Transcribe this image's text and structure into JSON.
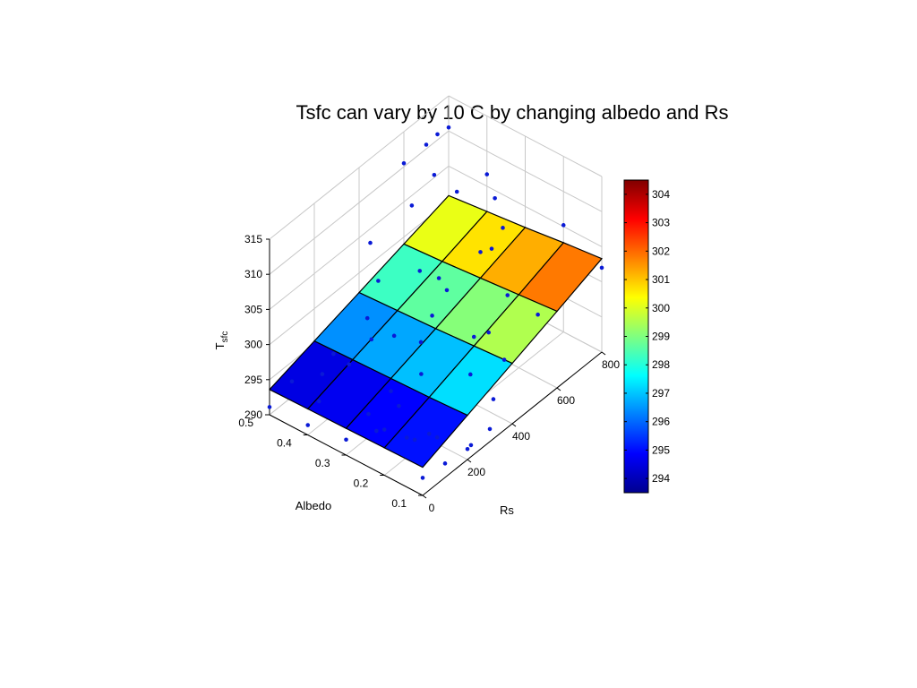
{
  "chart_data": {
    "type": "surface3d",
    "title": "Tsfc can vary by 10 C by changing albedo and Rs",
    "xlabel": "Rs",
    "ylabel": "Albedo",
    "zlabel_main": "T",
    "zlabel_sub": "sfc",
    "xlim": [
      0,
      800
    ],
    "ylim": [
      0.1,
      0.5
    ],
    "zlim": [
      290,
      315
    ],
    "x_ticks": [
      "0",
      "200",
      "400",
      "600",
      "800"
    ],
    "y_ticks": [
      "0.1",
      "0.2",
      "0.3",
      "0.4",
      "0.5"
    ],
    "z_ticks": [
      "290",
      "295",
      "300",
      "305",
      "310",
      "315"
    ],
    "grid": true,
    "surface": {
      "x": [
        0,
        200,
        400,
        600,
        800
      ],
      "y": [
        0.1,
        0.2,
        0.3,
        0.4,
        0.5
      ],
      "z": [
        [
          294.0,
          296.3,
          298.6,
          300.9,
          303.3
        ],
        [
          293.9,
          296.0,
          298.2,
          300.4,
          302.7
        ],
        [
          293.8,
          295.8,
          297.8,
          299.9,
          302.0
        ],
        [
          293.7,
          295.6,
          297.5,
          299.4,
          301.4
        ],
        [
          293.6,
          295.4,
          297.2,
          299.0,
          300.8
        ]
      ]
    },
    "scatter_points": [
      {
        "x": 0,
        "y": 0.1,
        "z": 292.5
      },
      {
        "x": 100,
        "y": 0.1,
        "z": 292.0
      },
      {
        "x": 200,
        "y": 0.1,
        "z": 291.5
      },
      {
        "x": 300,
        "y": 0.1,
        "z": 291.8
      },
      {
        "x": 50,
        "y": 0.15,
        "z": 295.2
      },
      {
        "x": 150,
        "y": 0.15,
        "z": 293.0
      },
      {
        "x": 250,
        "y": 0.12,
        "z": 290.2
      },
      {
        "x": 0,
        "y": 0.2,
        "z": 296.5
      },
      {
        "x": 100,
        "y": 0.2,
        "z": 292.8
      },
      {
        "x": 200,
        "y": 0.2,
        "z": 290.8
      },
      {
        "x": 350,
        "y": 0.18,
        "z": 296.0
      },
      {
        "x": 0,
        "y": 0.3,
        "z": 292.2
      },
      {
        "x": 100,
        "y": 0.3,
        "z": 293.3
      },
      {
        "x": 200,
        "y": 0.3,
        "z": 294.0
      },
      {
        "x": 300,
        "y": 0.28,
        "z": 299.0
      },
      {
        "x": 0,
        "y": 0.4,
        "z": 291.4
      },
      {
        "x": 50,
        "y": 0.4,
        "z": 293.5
      },
      {
        "x": 150,
        "y": 0.38,
        "z": 296.8
      },
      {
        "x": 250,
        "y": 0.38,
        "z": 297.8
      },
      {
        "x": 0,
        "y": 0.5,
        "z": 291.1
      },
      {
        "x": 100,
        "y": 0.5,
        "z": 292.2
      },
      {
        "x": 200,
        "y": 0.45,
        "z": 295.0
      },
      {
        "x": 300,
        "y": 0.42,
        "z": 298.4
      },
      {
        "x": 400,
        "y": 0.45,
        "z": 300.3
      },
      {
        "x": 450,
        "y": 0.5,
        "z": 303.0
      },
      {
        "x": 350,
        "y": 0.28,
        "z": 301.5
      },
      {
        "x": 450,
        "y": 0.3,
        "z": 302.0
      },
      {
        "x": 500,
        "y": 0.22,
        "z": 297.0
      },
      {
        "x": 400,
        "y": 0.2,
        "z": 299.5
      },
      {
        "x": 550,
        "y": 0.2,
        "z": 301.6
      },
      {
        "x": 600,
        "y": 0.15,
        "z": 299.0
      },
      {
        "x": 600,
        "y": 0.3,
        "z": 303.6
      },
      {
        "x": 500,
        "y": 0.4,
        "z": 300.6
      },
      {
        "x": 600,
        "y": 0.5,
        "z": 310.5
      },
      {
        "x": 650,
        "y": 0.45,
        "z": 309.0
      },
      {
        "x": 700,
        "y": 0.42,
        "z": 306.2
      },
      {
        "x": 550,
        "y": 0.45,
        "z": 307.2
      },
      {
        "x": 700,
        "y": 0.3,
        "z": 304.5
      },
      {
        "x": 750,
        "y": 0.35,
        "z": 306.0
      },
      {
        "x": 800,
        "y": 0.4,
        "z": 306.7
      },
      {
        "x": 800,
        "y": 0.2,
        "z": 305.2
      },
      {
        "x": 800,
        "y": 0.1,
        "z": 302.0
      },
      {
        "x": 800,
        "y": 0.5,
        "z": 310.5
      },
      {
        "x": 750,
        "y": 0.5,
        "z": 310.8
      },
      {
        "x": 700,
        "y": 0.5,
        "z": 310.6
      },
      {
        "x": 650,
        "y": 0.3,
        "z": 302.8
      },
      {
        "x": 450,
        "y": 0.15,
        "z": 296.4
      },
      {
        "x": 350,
        "y": 0.12,
        "z": 294.2
      },
      {
        "x": 150,
        "y": 0.25,
        "z": 294.6
      },
      {
        "x": 250,
        "y": 0.25,
        "z": 296.6
      },
      {
        "x": 300,
        "y": 0.35,
        "z": 297.9
      },
      {
        "x": 150,
        "y": 0.45,
        "z": 293.4
      },
      {
        "x": 50,
        "y": 0.25,
        "z": 293.6
      },
      {
        "x": 500,
        "y": 0.35,
        "z": 301.0
      }
    ],
    "colorbar": {
      "min": 293.5,
      "max": 304.5,
      "ticks": [
        "294",
        "295",
        "296",
        "297",
        "298",
        "299",
        "300",
        "301",
        "302",
        "303",
        "304"
      ],
      "colormap": "jet"
    },
    "colors": {
      "scatter": "#0a1ad6",
      "grid": "#c8c8c8",
      "axis": "#000000"
    }
  }
}
